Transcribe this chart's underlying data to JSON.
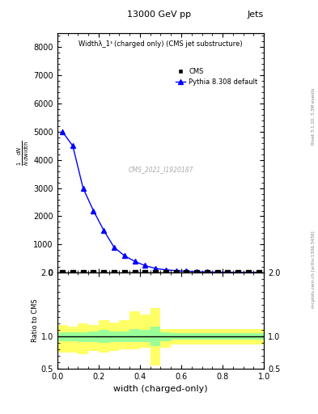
{
  "title_top": "13000 GeV pp",
  "title_right": "Jets",
  "plot_title": "Widthλ_1¹ (charged only) (CMS jet substructure)",
  "xlabel": "width (charged-only)",
  "ylabel_main": "1/N dN/dwidth",
  "ylabel_ratio": "Ratio to CMS",
  "watermark": "CMS_2021_I1920187",
  "rivet_label": "Rivet 3.1.10, 3.3M events",
  "arxiv_label": "mcplots.cern.ch [arXiv:1306.3436]",
  "cms_x": [
    0.025,
    0.075,
    0.125,
    0.175,
    0.225,
    0.275,
    0.325,
    0.375,
    0.425,
    0.475,
    0.525,
    0.575,
    0.625,
    0.675,
    0.725,
    0.775,
    0.825,
    0.875,
    0.925,
    0.975
  ],
  "cms_y": [
    2,
    2,
    2,
    2,
    2,
    2,
    2,
    2,
    2,
    2,
    2,
    2,
    2,
    2,
    2,
    2,
    2,
    2,
    2,
    2
  ],
  "pythia_x": [
    0.025,
    0.075,
    0.125,
    0.175,
    0.225,
    0.275,
    0.325,
    0.375,
    0.425,
    0.475,
    0.525,
    0.575,
    0.625,
    0.675,
    0.725,
    0.775,
    0.825,
    0.875,
    0.925,
    0.975
  ],
  "pythia_y": [
    5000,
    4500,
    3000,
    2200,
    1500,
    900,
    600,
    400,
    250,
    150,
    100,
    70,
    50,
    35,
    25,
    18,
    14,
    10,
    8,
    6
  ],
  "ylim_main": [
    0,
    8500
  ],
  "yticks_main": [
    0,
    1000,
    2000,
    3000,
    4000,
    5000,
    6000,
    7000,
    8000
  ],
  "xlim": [
    0,
    1
  ],
  "ratio_yellow_lo": [
    0.75,
    0.75,
    0.72,
    0.78,
    0.75,
    0.78,
    0.8,
    0.8,
    0.82,
    0.55,
    0.82,
    0.88,
    0.88,
    0.88,
    0.88,
    0.88,
    0.88,
    0.88,
    0.88,
    0.88
  ],
  "ratio_yellow_hi": [
    1.18,
    1.15,
    1.2,
    1.18,
    1.25,
    1.22,
    1.25,
    1.4,
    1.35,
    1.45,
    1.12,
    1.12,
    1.12,
    1.12,
    1.12,
    1.12,
    1.12,
    1.12,
    1.12,
    1.12
  ],
  "ratio_green_lo": [
    0.93,
    0.93,
    0.92,
    0.92,
    0.9,
    0.92,
    0.92,
    0.92,
    0.92,
    0.85,
    0.93,
    0.95,
    0.95,
    0.95,
    0.95,
    0.95,
    0.95,
    0.95,
    0.95,
    0.95
  ],
  "ratio_green_hi": [
    1.06,
    1.07,
    1.07,
    1.08,
    1.1,
    1.08,
    1.08,
    1.12,
    1.1,
    1.15,
    1.06,
    1.05,
    1.05,
    1.05,
    1.05,
    1.05,
    1.05,
    1.05,
    1.05,
    1.05
  ],
  "ratio_line_y": 1.0,
  "ylim_ratio": [
    0.5,
    2.0
  ],
  "yticks_ratio": [
    0.5,
    1.0,
    2.0
  ],
  "color_cms": "black",
  "color_pythia": "blue",
  "color_yellow": "#ffff66",
  "color_green": "#99ff99",
  "bin_width": 0.05
}
